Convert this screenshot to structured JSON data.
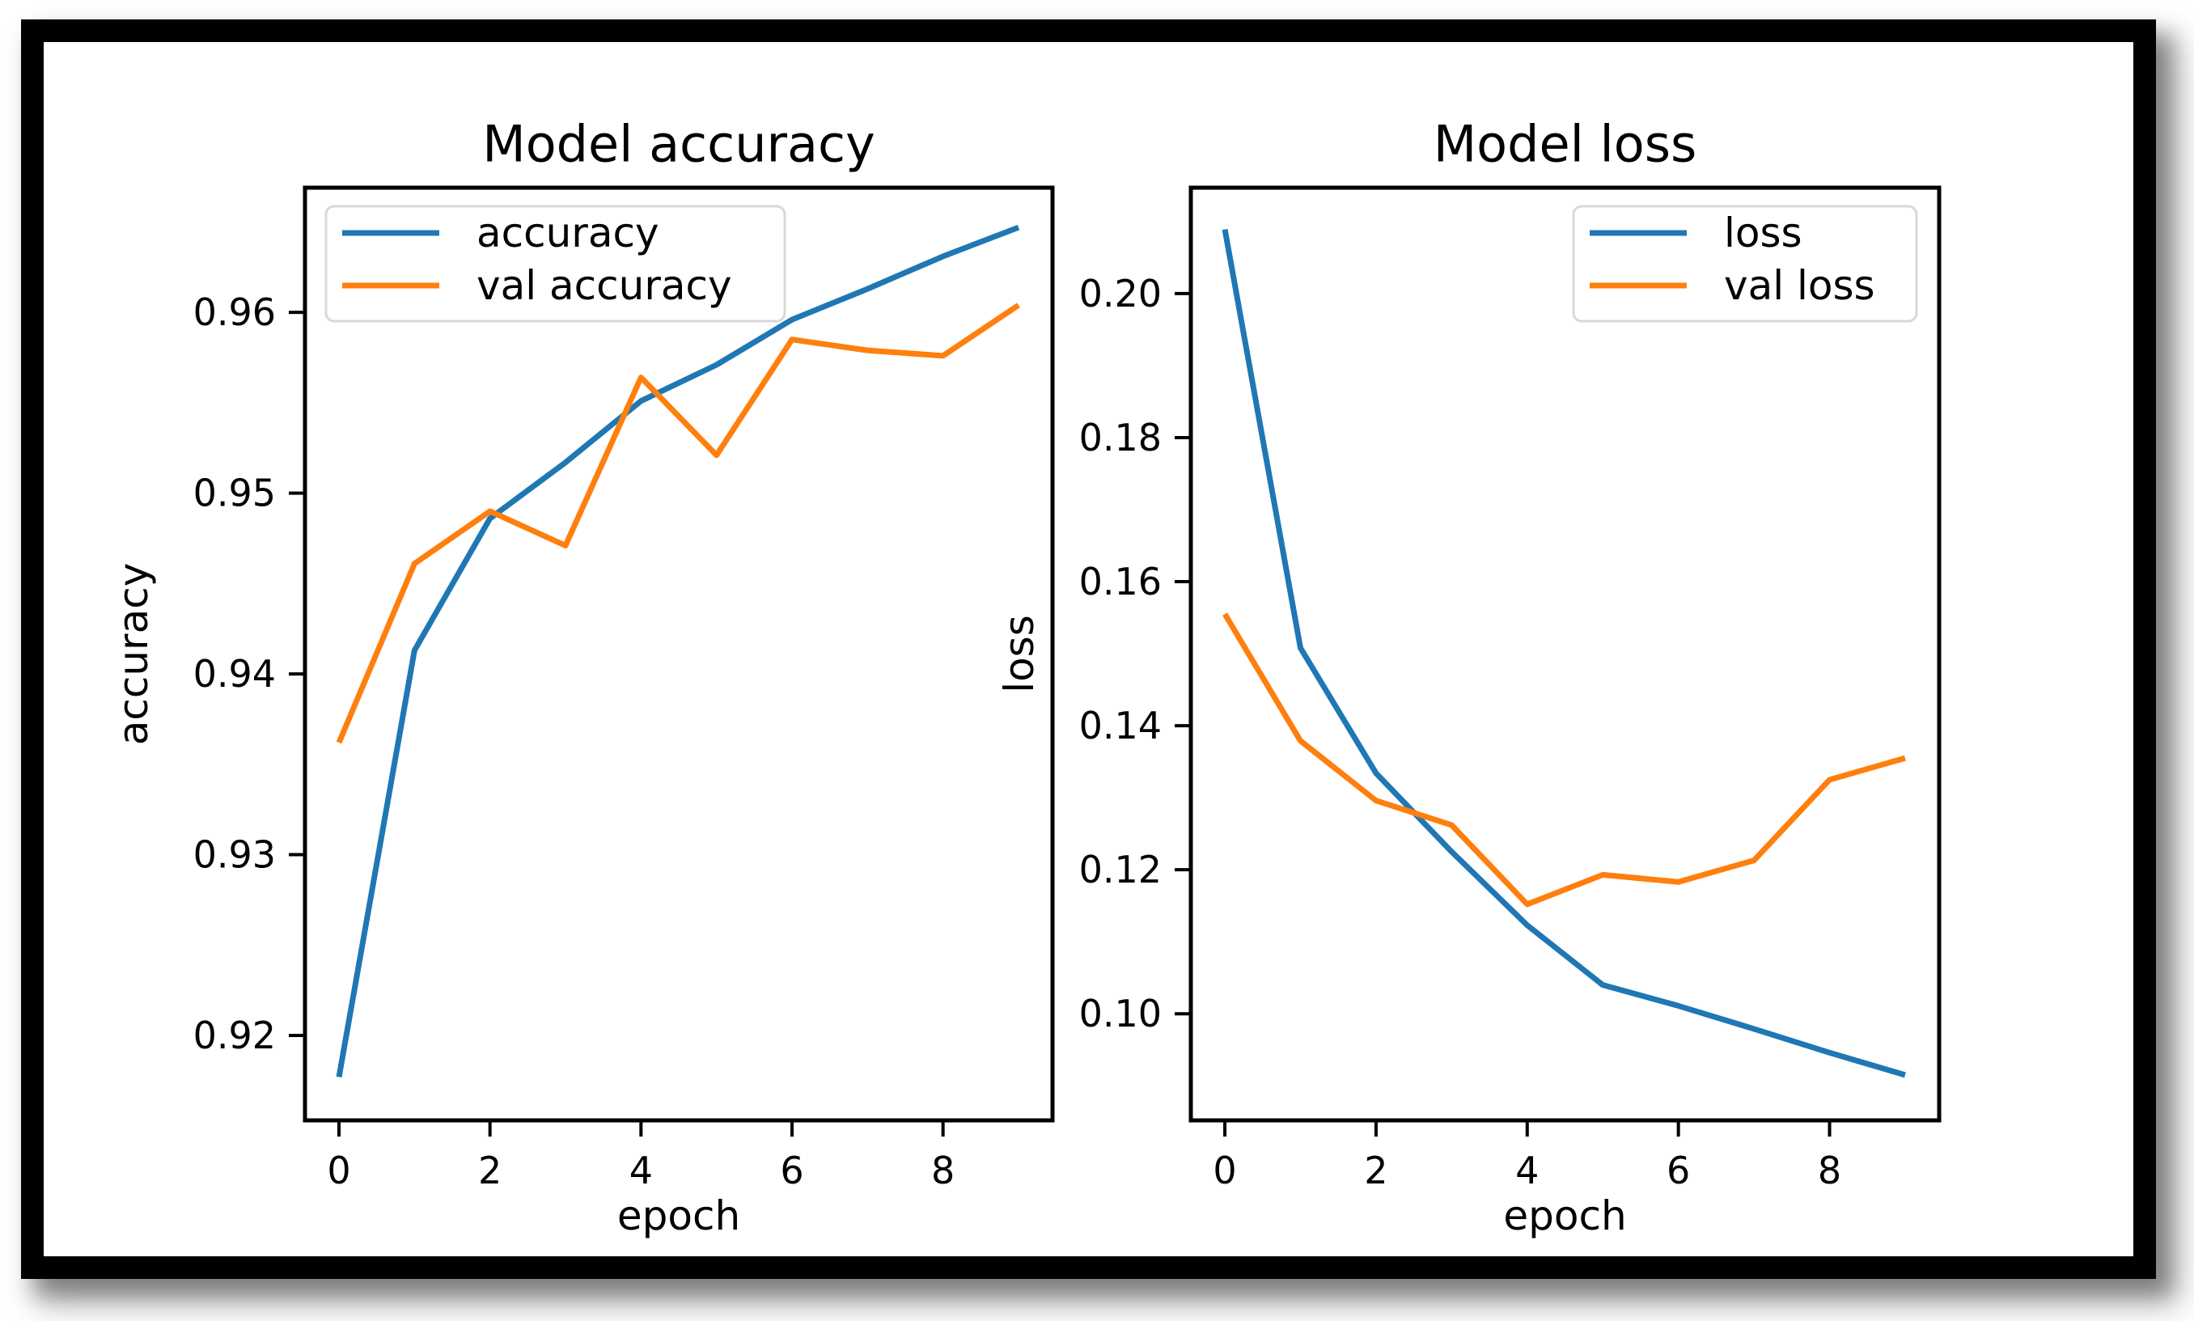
{
  "figure": {
    "background": "#ffffff",
    "frame_color": "#000000",
    "text_color": "#000000",
    "spine_color": "#000000",
    "legend_border_color": "#d8d8d8"
  },
  "chart_data": [
    {
      "type": "line",
      "title": "Model accuracy",
      "xlabel": "epoch",
      "ylabel": "accuracy",
      "x": [
        0,
        1,
        2,
        3,
        4,
        5,
        6,
        7,
        8,
        9
      ],
      "series": [
        {
          "name": "accuracy",
          "color": "#1f77b4",
          "values": [
            0.9177,
            0.9413,
            0.9486,
            0.9517,
            0.9551,
            0.9571,
            0.9596,
            0.9613,
            0.9631,
            0.9647
          ]
        },
        {
          "name": "val accuracy",
          "color": "#ff7f0e",
          "values": [
            0.9362,
            0.9461,
            0.949,
            0.9471,
            0.9564,
            0.9521,
            0.9585,
            0.9579,
            0.9576,
            0.9604
          ]
        }
      ],
      "xlim": [
        -0.45,
        9.45
      ],
      "ylim": [
        0.9153,
        0.9669
      ],
      "xticks": [
        0,
        2,
        4,
        6,
        8
      ],
      "xtick_labels": [
        "0",
        "2",
        "4",
        "6",
        "8"
      ],
      "yticks": [
        0.92,
        0.93,
        0.94,
        0.95,
        0.96
      ],
      "ytick_labels": [
        "0.92",
        "0.93",
        "0.94",
        "0.95",
        "0.96"
      ],
      "legend": {
        "position": "upper-left",
        "entries": [
          "accuracy",
          "val accuracy"
        ]
      },
      "grid": false
    },
    {
      "type": "line",
      "title": "Model loss",
      "xlabel": "epoch",
      "ylabel": "loss",
      "x": [
        0,
        1,
        2,
        3,
        4,
        5,
        6,
        7,
        8,
        9
      ],
      "series": [
        {
          "name": "loss",
          "color": "#1f77b4",
          "values": [
            0.2089,
            0.1508,
            0.1334,
            0.1225,
            0.1123,
            0.104,
            0.1011,
            0.0979,
            0.0946,
            0.0915
          ]
        },
        {
          "name": "val loss",
          "color": "#ff7f0e",
          "values": [
            0.1555,
            0.1379,
            0.1296,
            0.1262,
            0.1152,
            0.1193,
            0.1183,
            0.1213,
            0.1325,
            0.1355
          ]
        }
      ],
      "xlim": [
        -0.45,
        9.45
      ],
      "ylim": [
        0.0852,
        0.2147
      ],
      "xticks": [
        0,
        2,
        4,
        6,
        8
      ],
      "xtick_labels": [
        "0",
        "2",
        "4",
        "6",
        "8"
      ],
      "yticks": [
        0.1,
        0.12,
        0.14,
        0.16,
        0.18,
        0.2
      ],
      "ytick_labels": [
        "0.10",
        "0.12",
        "0.14",
        "0.16",
        "0.18",
        "0.20"
      ],
      "legend": {
        "position": "upper-right",
        "entries": [
          "loss",
          "val loss"
        ]
      },
      "grid": false
    }
  ]
}
